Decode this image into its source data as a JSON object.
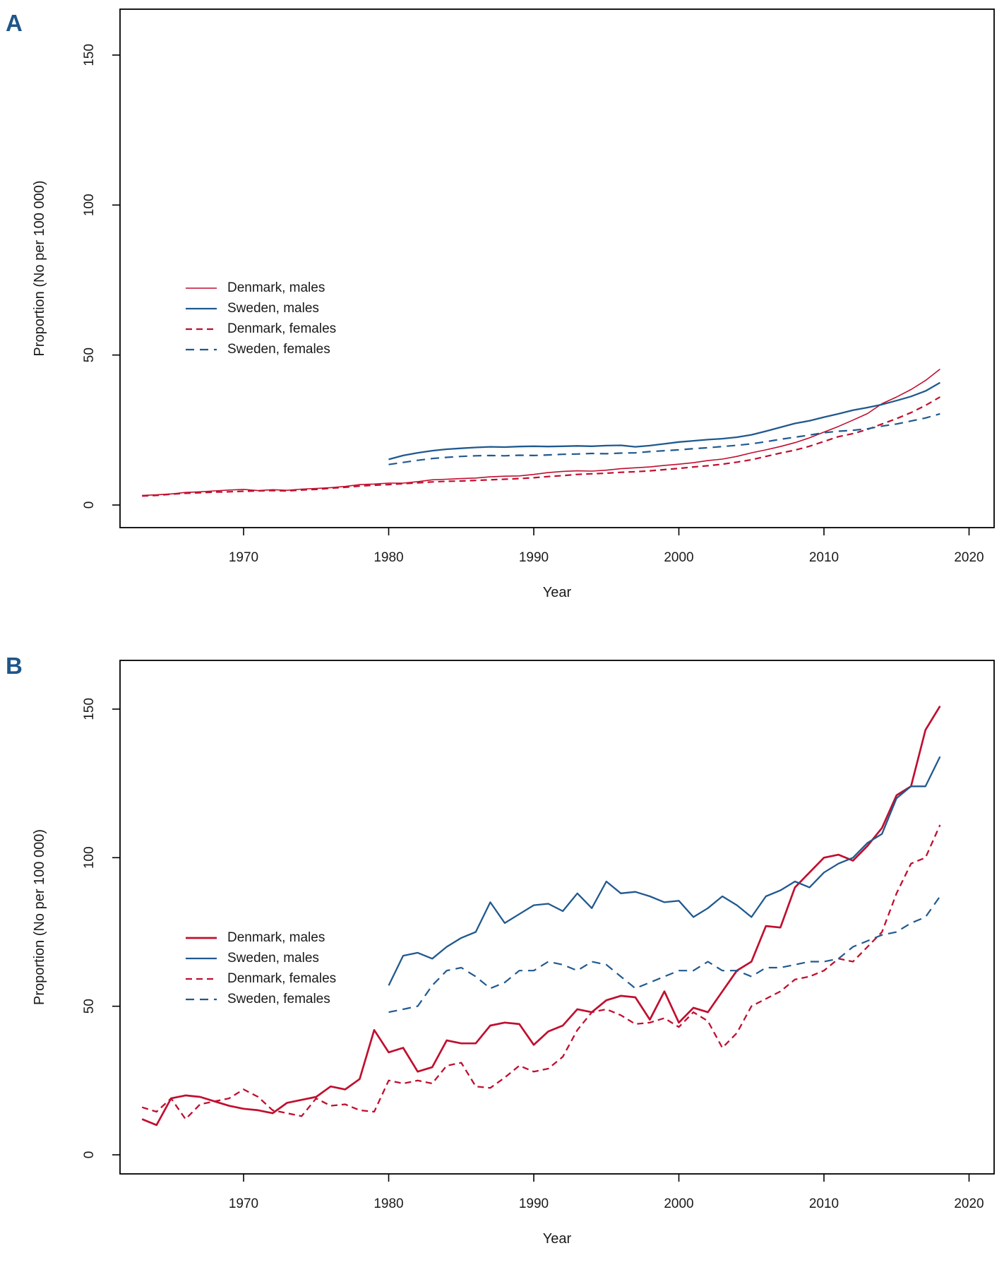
{
  "figure_title": "",
  "accent_colors": {
    "denmark_red": "#c00f2f",
    "sweden_blue": "#20598f",
    "panel_letter_blue": "#1d5689",
    "axis_black": "#000000"
  },
  "chart_data": [
    {
      "panel_label": "A",
      "type": "line",
      "title": "",
      "xlabel": "Year",
      "ylabel": "Proportion (No per 100 000)",
      "x_ticks": [
        1970,
        1980,
        1990,
        2000,
        2010,
        2020
      ],
      "y_ticks": [
        0,
        50,
        100,
        150
      ],
      "xlim": [
        1961.5,
        2021.5
      ],
      "ylim": [
        0,
        165
      ],
      "grid": false,
      "legend_position": "middle-left",
      "series": [
        {
          "name": "Denmark, males",
          "color": "#c00f2f",
          "dash": false,
          "width": 1.6,
          "start_year": 1963,
          "values": [
            3.2,
            3.4,
            3.7,
            4.2,
            4.4,
            4.7,
            5.0,
            5.2,
            4.8,
            5.1,
            4.9,
            5.3,
            5.5,
            5.8,
            6.2,
            6.8,
            7.0,
            7.3,
            7.3,
            7.8,
            8.4,
            8.6,
            8.8,
            9.0,
            9.4,
            9.6,
            9.7,
            10.2,
            10.8,
            11.2,
            11.4,
            11.3,
            11.6,
            12.1,
            12.4,
            12.7,
            13.2,
            13.6,
            14.1,
            14.8,
            15.3,
            16.2,
            17.4,
            18.4,
            19.5,
            20.8,
            22.4,
            24.3,
            26.2,
            28.3,
            30.5,
            33.8,
            36.0,
            38.5,
            41.5,
            45.3
          ]
        },
        {
          "name": "Sweden, males",
          "color": "#20598f",
          "dash": false,
          "width": 2.3,
          "start_year": 1980,
          "values": [
            15.2,
            16.5,
            17.4,
            18.1,
            18.6,
            18.9,
            19.2,
            19.4,
            19.3,
            19.5,
            19.6,
            19.5,
            19.6,
            19.7,
            19.6,
            19.8,
            19.9,
            19.4,
            19.8,
            20.4,
            21.0,
            21.4,
            21.8,
            22.1,
            22.6,
            23.4,
            24.6,
            25.9,
            27.2,
            28.1,
            29.3,
            30.4,
            31.6,
            32.5,
            33.5,
            34.8,
            36.2,
            38.0,
            40.8
          ]
        },
        {
          "name": "Denmark, females",
          "color": "#c00f2f",
          "dash": true,
          "width": 2.2,
          "start_year": 1963,
          "values": [
            3.0,
            3.2,
            3.6,
            3.9,
            4.1,
            4.3,
            4.4,
            4.6,
            4.7,
            4.8,
            4.7,
            5.0,
            5.2,
            5.6,
            5.9,
            6.3,
            6.6,
            6.8,
            7.1,
            7.4,
            7.7,
            7.9,
            8.0,
            8.2,
            8.4,
            8.6,
            8.8,
            9.1,
            9.5,
            9.8,
            10.2,
            10.4,
            10.6,
            10.9,
            11.1,
            11.4,
            11.8,
            12.2,
            12.7,
            13.1,
            13.6,
            14.3,
            15.1,
            16.2,
            17.3,
            18.3,
            19.6,
            21.2,
            22.8,
            23.8,
            25.2,
            27.0,
            28.8,
            30.8,
            33.2,
            36.0
          ]
        },
        {
          "name": "Sweden, females",
          "color": "#20598f",
          "dash": true,
          "width": 2.2,
          "start_year": 1980,
          "values": [
            13.5,
            14.2,
            14.9,
            15.5,
            15.9,
            16.2,
            16.4,
            16.5,
            16.4,
            16.6,
            16.5,
            16.7,
            16.9,
            17.0,
            17.2,
            17.1,
            17.3,
            17.4,
            17.8,
            18.1,
            18.4,
            18.8,
            19.1,
            19.5,
            19.9,
            20.4,
            21.1,
            21.9,
            22.6,
            23.3,
            24.1,
            24.6,
            24.9,
            25.4,
            26.3,
            27.0,
            28.0,
            29.0,
            30.4
          ]
        }
      ]
    },
    {
      "panel_label": "B",
      "type": "line",
      "title": "",
      "xlabel": "Year",
      "ylabel": "Proportion (No per 100 000)",
      "x_ticks": [
        1970,
        1980,
        1990,
        2000,
        2010,
        2020
      ],
      "y_ticks": [
        0,
        50,
        100,
        150
      ],
      "xlim": [
        1961.5,
        2021.5
      ],
      "ylim": [
        0,
        165
      ],
      "grid": false,
      "legend_position": "middle-left",
      "series": [
        {
          "name": "Denmark, males",
          "color": "#c00f2f",
          "dash": false,
          "width": 2.7,
          "start_year": 1963,
          "values": [
            12,
            10,
            19,
            20,
            19.5,
            18,
            16.5,
            15.5,
            15,
            14,
            17.5,
            18.5,
            19.5,
            23,
            22,
            25.5,
            42,
            34.5,
            36,
            28,
            29.5,
            38.5,
            37.5,
            37.5,
            43.5,
            44.5,
            44,
            37,
            41.5,
            43.5,
            49,
            48,
            52,
            53.5,
            53,
            45.5,
            55,
            44.5,
            49.5,
            48,
            55,
            62,
            65,
            77,
            76.5,
            90,
            95,
            100,
            101,
            99,
            104,
            110,
            121,
            124,
            143,
            151
          ]
        },
        {
          "name": "Sweden, males",
          "color": "#20598f",
          "dash": false,
          "width": 2.3,
          "start_year": 1980,
          "values": [
            57,
            67,
            68,
            66,
            70,
            73,
            75,
            85,
            78,
            81,
            84,
            84.5,
            82,
            88,
            83,
            92,
            88,
            88.5,
            87,
            85,
            85.5,
            80,
            83,
            87,
            84,
            80,
            87,
            89,
            92,
            90,
            95,
            98,
            100,
            105,
            108,
            120,
            124,
            124,
            134
          ]
        },
        {
          "name": "Denmark, females",
          "color": "#c00f2f",
          "dash": true,
          "width": 2.3,
          "start_year": 1963,
          "values": [
            16,
            14.5,
            19,
            12,
            17,
            18,
            19,
            22,
            19.5,
            15,
            14,
            13,
            19,
            16.5,
            17,
            15,
            14.5,
            25,
            24,
            25,
            24,
            30,
            31,
            23,
            22.5,
            26,
            30,
            28,
            29,
            33,
            42,
            48,
            49,
            47,
            44,
            44.5,
            46,
            43,
            48,
            45,
            36,
            41,
            50,
            52.5,
            55,
            59,
            60,
            62,
            66,
            65,
            70,
            75,
            88,
            98,
            100,
            111
          ]
        },
        {
          "name": "Sweden, females",
          "color": "#20598f",
          "dash": true,
          "width": 2.2,
          "start_year": 1980,
          "values": [
            48,
            49,
            50,
            57,
            62,
            63,
            60,
            56,
            58,
            62,
            62,
            65,
            64,
            62,
            65,
            64,
            60,
            56,
            58,
            60,
            62,
            62,
            65,
            62,
            62,
            60,
            63,
            63,
            64,
            65,
            65,
            66,
            70,
            72,
            74,
            75,
            78,
            80,
            87
          ]
        }
      ]
    }
  ]
}
